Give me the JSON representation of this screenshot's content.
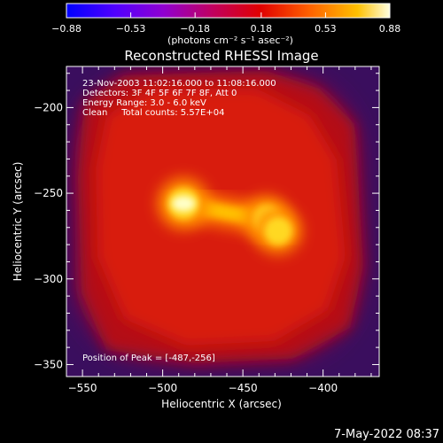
{
  "chart_data": {
    "type": "heatmap",
    "title": "Reconstructed RHESSI Image",
    "xlabel": "Heliocentric X (arcsec)",
    "ylabel": "Heliocentric Y (arcsec)",
    "xlim": [
      -560,
      -365
    ],
    "ylim": [
      -357,
      -176
    ],
    "x_ticks": [
      -550,
      -500,
      -450,
      -400
    ],
    "y_ticks": [
      -350,
      -300,
      -250,
      -200
    ],
    "colorbar": {
      "range": [
        -0.88,
        0.88
      ],
      "ticks": [
        -0.88,
        -0.53,
        -0.18,
        0.18,
        0.53,
        0.88
      ],
      "tick_labels": [
        "-0.88",
        "-0.53",
        "-0.18",
        "0.18",
        "0.53",
        "0.88"
      ],
      "unit_label": "(photons cm⁻² s⁻¹ asec⁻²)"
    },
    "annotations": [
      "23-Nov-2003 11:02:16.000 to 11:08:16.000",
      "Detectors: 3F 4F 5F 6F 7F 8F, Att 0",
      "Energy Range: 3.0 - 6.0 keV",
      "Clean     Total counts: 5.57E+04"
    ],
    "peak_label": "Position of Peak = [-487,-256]",
    "peak_position": [
      -487,
      -256
    ],
    "sources": [
      {
        "x": -487,
        "y": -256,
        "value": 0.88
      },
      {
        "x": -435,
        "y": -265,
        "value": 0.7
      },
      {
        "x": -428,
        "y": -272,
        "value": 0.72
      }
    ]
  },
  "footer": {
    "timestamp": "7-May-2022 08:37"
  },
  "colors": {
    "background": "#000000",
    "colormap": [
      "#0000ff",
      "#8000ff",
      "#b000a0",
      "#e00000",
      "#ff8000",
      "#ffff40",
      "#ffffff"
    ]
  }
}
